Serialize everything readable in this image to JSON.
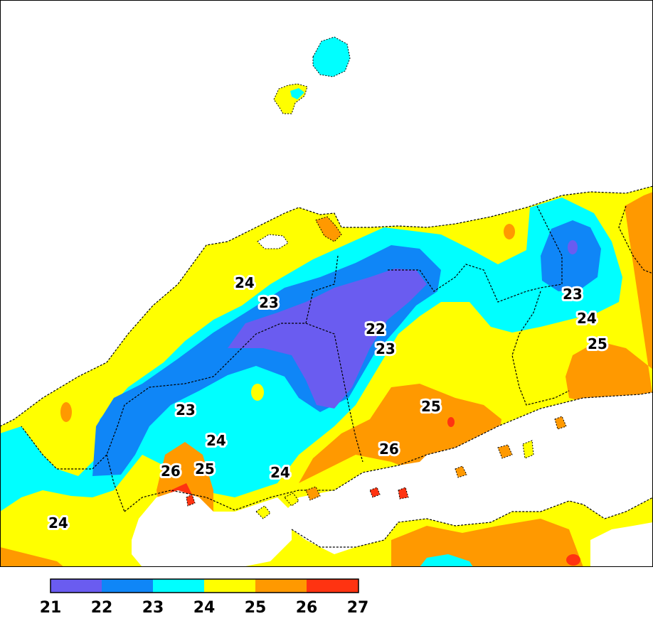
{
  "colors": {
    "c21_22": "#6a5cf0",
    "c22_23": "#0f86f7",
    "c23_24": "#00ffff",
    "c24_25": "#ffff00",
    "c25_26": "#ff9900",
    "c26_27": "#ff3311",
    "land_blank": "#ffffff"
  },
  "contour_labels": [
    "24",
    "23",
    "22",
    "23",
    "23",
    "24",
    "25",
    "23",
    "24",
    "26",
    "25",
    "24",
    "24",
    "25",
    "26"
  ],
  "legend": {
    "ticks": [
      "21",
      "22",
      "23",
      "24",
      "25",
      "26",
      "27"
    ]
  }
}
